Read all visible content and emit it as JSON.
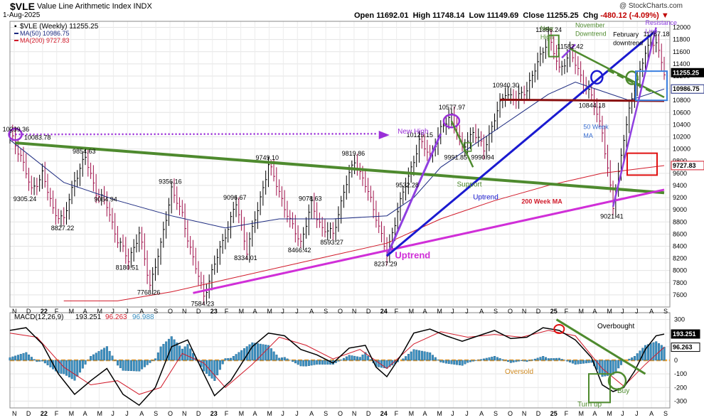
{
  "header": {
    "ticker": "$VLE",
    "name": "Value Line Arithmetic Index",
    "exchange": "INDX",
    "date": "1-Aug-2025",
    "copyright": "@ StockCharts.com",
    "open_label": "Open",
    "open": "11692.01",
    "high_label": "High",
    "high": "11748.14",
    "low_label": "Low",
    "low": "11149.69",
    "close_label": "Close",
    "close": "11255.25",
    "chg_label": "Chg",
    "chg": "-480.12 (-4.09%)"
  },
  "legend": {
    "price": "$VLE (Weekly) 11255.25",
    "ma50": "MA(50) 10986.75",
    "ma200": "MA(200) 9727.83",
    "macd_title": "MACD(12,26,9)",
    "macd_v1": "193.251",
    "macd_v2": "96.263",
    "macd_v3": "96.988"
  },
  "colors": {
    "up_bar": "#000000",
    "down_bar": "#a0104a",
    "ma50": "#1c2a80",
    "ma200": "#d11a2a",
    "green_annot": "#4e8a2e",
    "blue_annot": "#1a1ad0",
    "magenta_annot": "#d02fd8",
    "purple_annot": "#9a2fd8",
    "darkred_annot": "#8a1010",
    "red_box": "#e01010",
    "hist": "#3a8fc0",
    "zero_line": "#f0a030"
  },
  "x_axis": {
    "months": [
      "N",
      "D",
      "22",
      "F",
      "M",
      "A",
      "M",
      "J",
      "J",
      "A",
      "S",
      "O",
      "N",
      "D",
      "23",
      "F",
      "M",
      "A",
      "M",
      "J",
      "J",
      "A",
      "S",
      "O",
      "N",
      "D",
      "24",
      "F",
      "M",
      "A",
      "M",
      "J",
      "J",
      "A",
      "S",
      "O",
      "N",
      "D",
      "25",
      "F",
      "M",
      "A",
      "M",
      "J",
      "J",
      "A",
      "S"
    ]
  },
  "chart_data": [
    {
      "type": "line",
      "title": "$VLE (Weekly)",
      "y_ticks": [
        7600,
        7800,
        8000,
        8200,
        8400,
        8600,
        8800,
        9000,
        9200,
        9400,
        9600,
        9800,
        10000,
        10200,
        10400,
        10600,
        10800,
        11000,
        11200,
        11400,
        11600,
        11800,
        12000
      ],
      "ylim": [
        7400,
        12100
      ],
      "axis_markers": [
        {
          "label": "11255.25",
          "value": 11255.25
        },
        {
          "label": "10986.75",
          "value": 10986.75
        },
        {
          "label": "9727.83",
          "value": 9727.83
        }
      ],
      "price_path": [
        [
          0,
          10239
        ],
        [
          4,
          9900
        ],
        [
          8,
          9305
        ],
        [
          12,
          9600
        ],
        [
          16,
          9000
        ],
        [
          20,
          8827
        ],
        [
          24,
          9500
        ],
        [
          28,
          9854
        ],
        [
          32,
          9300
        ],
        [
          36,
          9064
        ],
        [
          40,
          8500
        ],
        [
          44,
          8180
        ],
        [
          48,
          8600
        ],
        [
          52,
          7768
        ],
        [
          56,
          8400
        ],
        [
          60,
          9356
        ],
        [
          64,
          8900
        ],
        [
          68,
          8200
        ],
        [
          72,
          7584
        ],
        [
          76,
          8100
        ],
        [
          80,
          8600
        ],
        [
          84,
          9096
        ],
        [
          88,
          8334
        ],
        [
          92,
          9000
        ],
        [
          96,
          9749
        ],
        [
          100,
          9300
        ],
        [
          104,
          8800
        ],
        [
          108,
          8466
        ],
        [
          112,
          9078
        ],
        [
          116,
          8700
        ],
        [
          120,
          8593
        ],
        [
          124,
          9300
        ],
        [
          128,
          9820
        ],
        [
          132,
          9400
        ],
        [
          136,
          8900
        ],
        [
          140,
          8237
        ],
        [
          144,
          9000
        ],
        [
          148,
          9532
        ],
        [
          152,
          10125
        ],
        [
          156,
          9900
        ],
        [
          160,
          10300
        ],
        [
          164,
          10578
        ],
        [
          168,
          9992
        ],
        [
          172,
          10300
        ],
        [
          176,
          9990
        ],
        [
          180,
          10500
        ],
        [
          184,
          10940
        ],
        [
          188,
          10800
        ],
        [
          192,
          11000
        ],
        [
          196,
          11400
        ],
        [
          200,
          11856
        ],
        [
          204,
          11300
        ],
        [
          208,
          11582
        ],
        [
          212,
          11200
        ],
        [
          216,
          10844
        ],
        [
          220,
          10300
        ],
        [
          224,
          9021
        ],
        [
          228,
          10200
        ],
        [
          232,
          11000
        ],
        [
          236,
          11600
        ],
        [
          240,
          11787
        ],
        [
          243,
          11255
        ]
      ],
      "ma50_path": [
        [
          0,
          10150
        ],
        [
          20,
          9450
        ],
        [
          40,
          9150
        ],
        [
          60,
          8900
        ],
        [
          80,
          8700
        ],
        [
          100,
          8850
        ],
        [
          120,
          8850
        ],
        [
          140,
          8900
        ],
        [
          150,
          9200
        ],
        [
          160,
          9700
        ],
        [
          170,
          10000
        ],
        [
          180,
          10300
        ],
        [
          190,
          10600
        ],
        [
          200,
          10900
        ],
        [
          210,
          11100
        ],
        [
          220,
          10950
        ],
        [
          230,
          10800
        ],
        [
          243,
          10986
        ]
      ],
      "ma200_path": [
        [
          20,
          7500
        ],
        [
          40,
          7500
        ],
        [
          60,
          7650
        ],
        [
          80,
          7850
        ],
        [
          100,
          8050
        ],
        [
          120,
          8250
        ],
        [
          140,
          8450
        ],
        [
          160,
          8850
        ],
        [
          180,
          9150
        ],
        [
          200,
          9400
        ],
        [
          220,
          9600
        ],
        [
          243,
          9727
        ]
      ],
      "price_labels": [
        "10239.36",
        "10083.78",
        "9305.24",
        "8827.22",
        "9854.63",
        "9064.94",
        "8180.51",
        "7768.26",
        "9356.16",
        "7584.23",
        "9096.67",
        "8334.01",
        "9749.10",
        "9078.63",
        "8466.42",
        "8593.27",
        "9819.86",
        "8237.29",
        "9532.28",
        "10125.15",
        "10577.97",
        "9991.85",
        "9990.94",
        "10940.30",
        "11856.24",
        "11582.42",
        "10844.18",
        "9021.41",
        "11787.18"
      ],
      "annotations": [
        "New High",
        "Support",
        "Uptrend",
        "Uptrend",
        "50 Week MA",
        "200 Week MA",
        "New High",
        "November Downtrend",
        "February downtrend",
        "Resistance Line"
      ]
    },
    {
      "type": "line",
      "title": "MACD(12,26,9)",
      "y_ticks": [
        300,
        200,
        100,
        0,
        -100,
        -200,
        -300
      ],
      "ylim": [
        -350,
        350
      ],
      "macd_path": [
        [
          0,
          220
        ],
        [
          6,
          240
        ],
        [
          12,
          120
        ],
        [
          18,
          -100
        ],
        [
          24,
          -250
        ],
        [
          30,
          -150
        ],
        [
          36,
          -60
        ],
        [
          42,
          -250
        ],
        [
          48,
          -330
        ],
        [
          54,
          -200
        ],
        [
          60,
          100
        ],
        [
          66,
          150
        ],
        [
          72,
          -100
        ],
        [
          76,
          -260
        ],
        [
          82,
          -150
        ],
        [
          90,
          100
        ],
        [
          96,
          200
        ],
        [
          102,
          180
        ],
        [
          108,
          80
        ],
        [
          114,
          40
        ],
        [
          120,
          -20
        ],
        [
          126,
          90
        ],
        [
          132,
          110
        ],
        [
          136,
          -50
        ],
        [
          140,
          -120
        ],
        [
          146,
          60
        ],
        [
          150,
          200
        ],
        [
          156,
          230
        ],
        [
          162,
          180
        ],
        [
          168,
          140
        ],
        [
          174,
          180
        ],
        [
          180,
          220
        ],
        [
          186,
          160
        ],
        [
          192,
          170
        ],
        [
          198,
          240
        ],
        [
          204,
          220
        ],
        [
          210,
          150
        ],
        [
          216,
          20
        ],
        [
          220,
          -180
        ],
        [
          224,
          -230
        ],
        [
          228,
          -200
        ],
        [
          232,
          -80
        ],
        [
          236,
          80
        ],
        [
          240,
          180
        ],
        [
          243,
          193
        ]
      ],
      "signal_path": [
        [
          0,
          200
        ],
        [
          10,
          170
        ],
        [
          20,
          -50
        ],
        [
          30,
          -180
        ],
        [
          40,
          -150
        ],
        [
          48,
          -250
        ],
        [
          56,
          -200
        ],
        [
          64,
          50
        ],
        [
          72,
          -20
        ],
        [
          80,
          -200
        ],
        [
          90,
          -30
        ],
        [
          100,
          170
        ],
        [
          110,
          110
        ],
        [
          120,
          10
        ],
        [
          130,
          80
        ],
        [
          140,
          -60
        ],
        [
          150,
          120
        ],
        [
          160,
          210
        ],
        [
          170,
          170
        ],
        [
          180,
          190
        ],
        [
          190,
          170
        ],
        [
          200,
          220
        ],
        [
          210,
          180
        ],
        [
          220,
          -60
        ],
        [
          228,
          -190
        ],
        [
          236,
          -30
        ],
        [
          243,
          96
        ]
      ],
      "annotations": [
        "Overbought",
        "Oversold",
        "Buy",
        "Turn up"
      ]
    }
  ]
}
